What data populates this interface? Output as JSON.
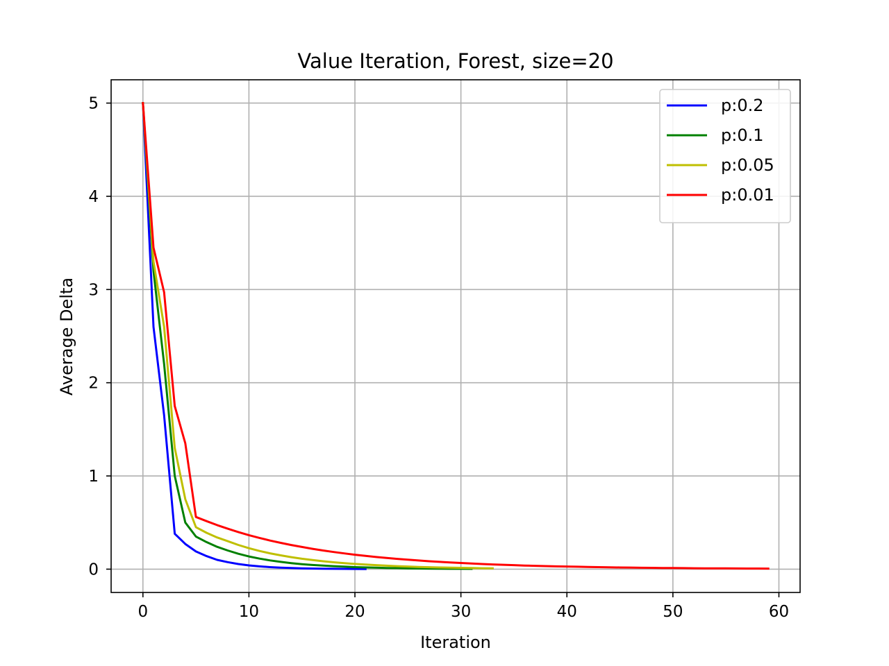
{
  "chart_data": {
    "type": "line",
    "title": "Value Iteration, Forest, size=20",
    "xlabel": "Iteration",
    "ylabel": "Average Delta",
    "xlim": [
      -3,
      62
    ],
    "ylim": [
      -0.25,
      5.25
    ],
    "xticks": [
      0,
      10,
      20,
      30,
      40,
      50,
      60
    ],
    "yticks": [
      0,
      1,
      2,
      3,
      4,
      5
    ],
    "xtick_labels": [
      "0",
      "10",
      "20",
      "30",
      "40",
      "50",
      "60"
    ],
    "ytick_labels": [
      "0",
      "1",
      "2",
      "3",
      "4",
      "5"
    ],
    "grid": true,
    "legend_position": "top-right",
    "series": [
      {
        "name": "p:0.2",
        "color": "#0000ff",
        "values": [
          5.0,
          2.6,
          1.65,
          0.38,
          0.27,
          0.19,
          0.14,
          0.1,
          0.075,
          0.055,
          0.04,
          0.03,
          0.022,
          0.016,
          0.012,
          0.009,
          0.007,
          0.005,
          0.004,
          0.003,
          0.002,
          0.0015
        ]
      },
      {
        "name": "p:0.1",
        "color": "#008000",
        "values": [
          5.0,
          3.2,
          2.2,
          1.0,
          0.5,
          0.35,
          0.29,
          0.24,
          0.2,
          0.165,
          0.136,
          0.113,
          0.094,
          0.078,
          0.065,
          0.054,
          0.045,
          0.038,
          0.032,
          0.027,
          0.022,
          0.019,
          0.016,
          0.013,
          0.011,
          0.009,
          0.0075,
          0.006,
          0.005,
          0.004,
          0.0035,
          0.003
        ]
      },
      {
        "name": "p:0.05",
        "color": "#bfbf00",
        "values": [
          5.0,
          3.3,
          2.6,
          1.3,
          0.75,
          0.45,
          0.39,
          0.34,
          0.3,
          0.26,
          0.225,
          0.195,
          0.17,
          0.148,
          0.129,
          0.112,
          0.098,
          0.085,
          0.074,
          0.065,
          0.056,
          0.049,
          0.043,
          0.037,
          0.032,
          0.028,
          0.024,
          0.021,
          0.018,
          0.016,
          0.014,
          0.012,
          0.01,
          0.009
        ]
      },
      {
        "name": "p:0.01",
        "color": "#ff0000",
        "values": [
          5.0,
          3.45,
          2.97,
          1.75,
          1.35,
          0.56,
          0.515,
          0.473,
          0.434,
          0.398,
          0.365,
          0.335,
          0.307,
          0.282,
          0.259,
          0.238,
          0.218,
          0.2,
          0.184,
          0.169,
          0.155,
          0.142,
          0.13,
          0.12,
          0.11,
          0.101,
          0.093,
          0.085,
          0.078,
          0.072,
          0.066,
          0.06,
          0.055,
          0.051,
          0.047,
          0.043,
          0.039,
          0.036,
          0.033,
          0.03,
          0.028,
          0.026,
          0.024,
          0.022,
          0.02,
          0.018,
          0.017,
          0.015,
          0.014,
          0.013,
          0.012,
          0.011,
          0.01,
          0.009,
          0.0085,
          0.008,
          0.0075,
          0.007,
          0.0065,
          0.006
        ]
      }
    ]
  }
}
